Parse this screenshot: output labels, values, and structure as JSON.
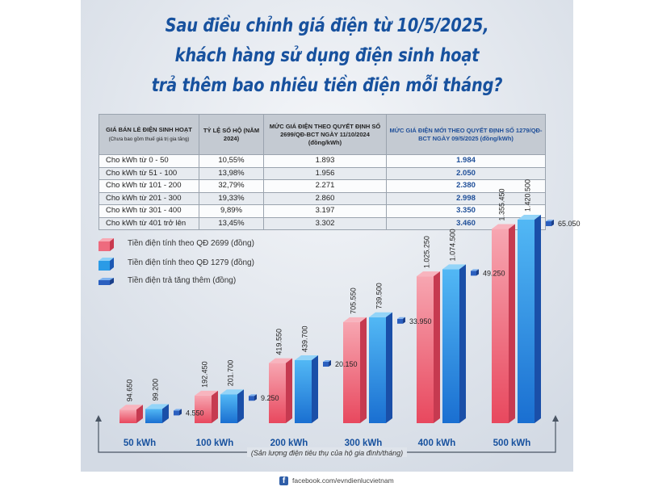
{
  "title": {
    "line1": "Sau điều chỉnh giá điện từ 10/5/2025,",
    "line2": "khách hàng sử dụng điện sinh hoạt",
    "line3": "trả thêm bao nhiêu tiền điện mỗi tháng?"
  },
  "table": {
    "headers": {
      "range": "GIÁ BÁN LẺ ĐIỆN SINH HOẠT",
      "range_note": "(Chưa bao gồm thuế giá trị gia tăng)",
      "ratio": "TỶ LỆ SỐ HỘ (NĂM 2024)",
      "old": "MỨC GIÁ ĐIỆN THEO QUYẾT ĐỊNH SỐ 2699/QĐ-BCT NGÀY 11/10/2024 (đồng/kWh)",
      "new": "MỨC GIÁ ĐIỆN MỚI THEO QUYẾT ĐỊNH SỐ 1279/QĐ-BCT NGÀY 09/5/2025 (đồng/kWh)"
    },
    "rows": [
      {
        "range": "Cho kWh từ 0 - 50",
        "ratio": "10,55%",
        "old": "1.893",
        "new": "1.984"
      },
      {
        "range": "Cho kWh từ  51 - 100",
        "ratio": "13,98%",
        "old": "1.956",
        "new": "2.050"
      },
      {
        "range": "Cho kWh từ 101 - 200",
        "ratio": "32,79%",
        "old": "2.271",
        "new": "2.380"
      },
      {
        "range": "Cho kWh từ 201 - 300",
        "ratio": "19,33%",
        "old": "2.860",
        "new": "2.998"
      },
      {
        "range": "Cho kWh từ 301 - 400",
        "ratio": "9,89%",
        "old": "3.197",
        "new": "3.350"
      },
      {
        "range": "Cho kWh từ 401 trở lên",
        "ratio": "13,45%",
        "old": "3.302",
        "new": "3.460"
      }
    ]
  },
  "legend": {
    "old": "Tiền điện tính theo QĐ 2699 (đồng)",
    "new": "Tiền điện tính theo QĐ 1279 (đồng)",
    "diff": "Tiền điện trả tăng thêm (đồng)"
  },
  "colors": {
    "title": "#17519e",
    "old_bar": "#ee6b7e",
    "new_bar": "#2b9be6",
    "diff_marker": "#2b5fbf"
  },
  "chart_data": {
    "type": "bar",
    "categories": [
      "50 kWh",
      "100 kWh",
      "200 kWh",
      "300 kWh",
      "400 kWh",
      "500 kWh"
    ],
    "series": [
      {
        "name": "Tiền điện tính theo QĐ 2699 (đồng)",
        "values": [
          94650,
          192450,
          419550,
          705550,
          1025250,
          1355450
        ],
        "labels": [
          "94.650",
          "192.450",
          "419.550",
          "705.550",
          "1.025.250",
          "1.355.450"
        ]
      },
      {
        "name": "Tiền điện tính theo QĐ 1279 (đồng)",
        "values": [
          99200,
          201700,
          439700,
          739500,
          1074500,
          1420500
        ],
        "labels": [
          "99.200",
          "201.700",
          "439.700",
          "739.500",
          "1.074.500",
          "1.420.500"
        ]
      },
      {
        "name": "Tiền điện trả tăng thêm (đồng)",
        "values": [
          4550,
          9250,
          20150,
          33950,
          49250,
          65050
        ],
        "labels": [
          "4.550",
          "9.250",
          "20.150",
          "33.950",
          "49.250",
          "65.050"
        ]
      }
    ],
    "xlabel": "(Sản lượng điện tiêu thụ của hộ gia đình/tháng)",
    "ylabel": ""
  },
  "footer": {
    "icon": "facebook-icon",
    "text": "facebook.com/evndienlucvietnam"
  }
}
